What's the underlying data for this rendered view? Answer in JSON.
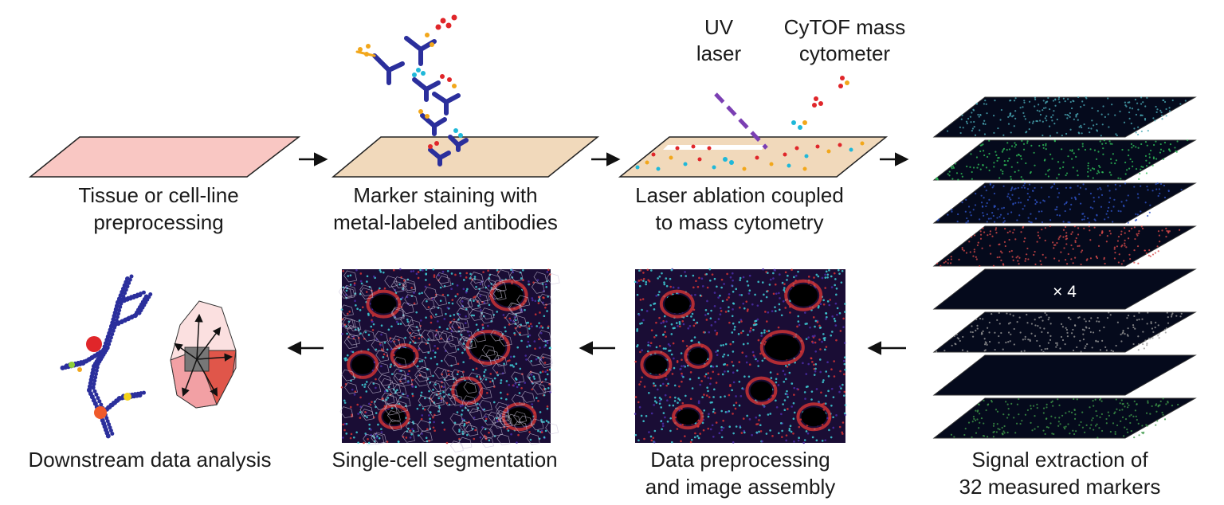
{
  "steps": {
    "s1": {
      "line1": "Tissue or cell-line",
      "line2": "preprocessing"
    },
    "s2": {
      "line1": "Marker staining with",
      "line2": "metal-labeled antibodies"
    },
    "s3": {
      "line1": "Laser ablation coupled",
      "line2": "to mass cytometry"
    },
    "s4": {
      "line1": "Signal extraction of",
      "line2": "32 measured  markers"
    },
    "s5": {
      "line1": "Data preprocessing",
      "line2": "and image assembly"
    },
    "s6": {
      "line1": "Single-cell segmentation"
    },
    "s7": {
      "line1": "Downstream data analysis"
    }
  },
  "annotations": {
    "uv_line1": "UV",
    "uv_line2": "laser",
    "cytof_line1": "CyTOF mass",
    "cytof_line2": "cytometer",
    "stack_multiplier": "× 4"
  },
  "colors": {
    "tissue_fill": "#f9c7c3",
    "stained_fill": "#f1d9bb",
    "antibody": "#2b2f9c",
    "laser": "#7b3fb3",
    "metal_red": "#e0262a",
    "metal_orange": "#f2a71b",
    "metal_cyan": "#1fb8d9",
    "layer_colors": [
      "#4aa9b5",
      "#2fc05a",
      "#2f54c8",
      "#d94a4a",
      "#0a0f3a",
      "#9a9a9a",
      "#0a0f3a",
      "#3f9a4a"
    ]
  }
}
